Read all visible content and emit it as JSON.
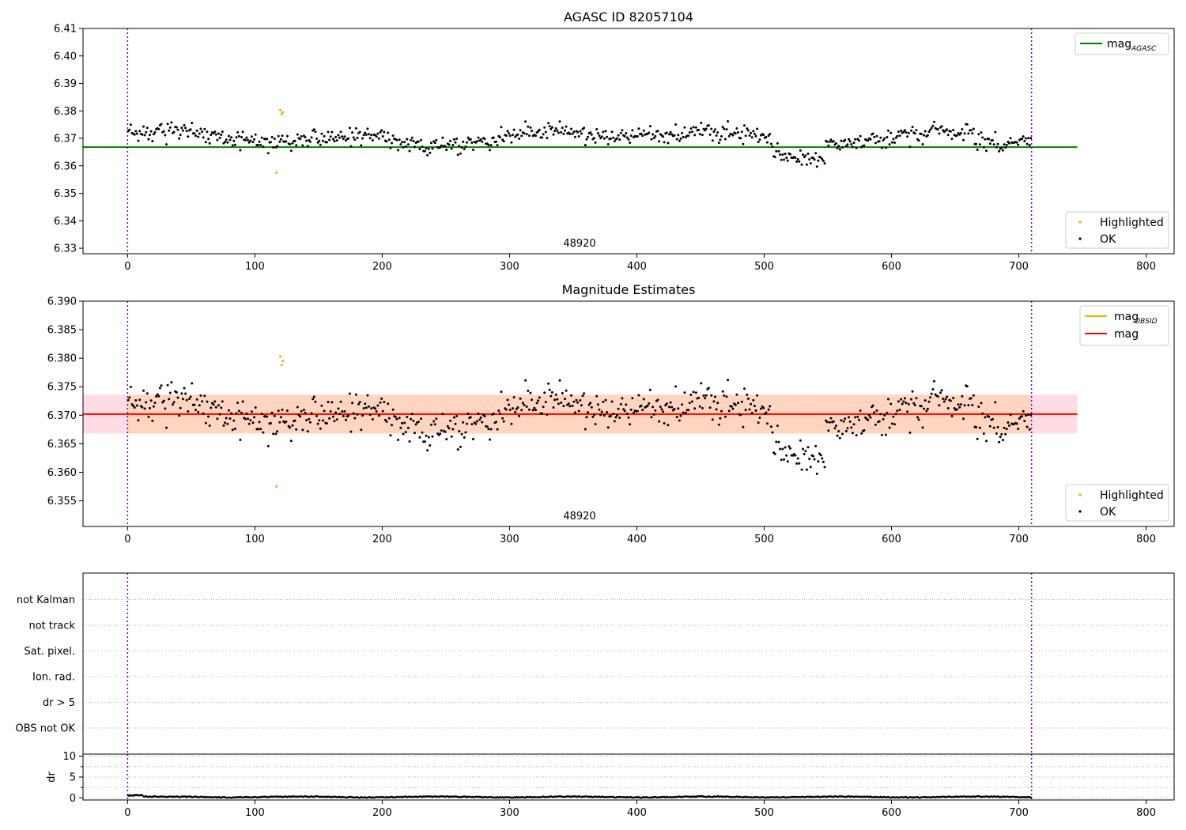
{
  "colors": {
    "ok": "#000000",
    "highlighted": "#ffa500",
    "mag_agasc": "#008000",
    "mag_obsid": "#ffa500",
    "mag": "#ff0000",
    "band_outer": "#ffdce3",
    "band_inner": "#ffd5c2",
    "obs_edge": "#7a0099",
    "grid": "#b0b0b0"
  },
  "chart_data": [
    {
      "type": "scatter",
      "title": "AGASC ID 82057104",
      "xlim": [
        -35,
        822
      ],
      "ylim": [
        6.328,
        6.41
      ],
      "xticks": [
        0,
        100,
        200,
        300,
        400,
        500,
        600,
        700,
        800
      ],
      "yticks": [
        "6.33",
        "6.34",
        "6.35",
        "6.36",
        "6.37",
        "6.38",
        "6.39",
        "6.40",
        "6.41"
      ],
      "reference_lines": [
        {
          "name": "mag",
          "name_sub": "AGASC",
          "value": 6.3668,
          "x_range": [
            -35,
            746
          ]
        }
      ],
      "obsid_boundaries": [
        0,
        710
      ],
      "annotation": {
        "text": "48920",
        "x": 355
      },
      "series": [
        {
          "name": "Highlighted",
          "points": [
            [
              117,
              6.3575
            ],
            [
              120,
              6.3803
            ],
            [
              122,
              6.3795
            ],
            [
              121,
              6.3788
            ]
          ]
        },
        {
          "name": "OK",
          "n_points": 710,
          "x_range": [
            0,
            710
          ]
        }
      ],
      "legends": [
        {
          "position": "upper-right",
          "entries": [
            "mag_AGASC"
          ]
        },
        {
          "position": "lower-right",
          "entries": [
            "Highlighted",
            "OK"
          ]
        }
      ]
    },
    {
      "type": "scatter",
      "title": "Magnitude Estimates",
      "xlim": [
        -35,
        822
      ],
      "ylim": [
        6.3505,
        6.39
      ],
      "xticks": [
        0,
        100,
        200,
        300,
        400,
        500,
        600,
        700,
        800
      ],
      "yticks": [
        "6.355",
        "6.360",
        "6.365",
        "6.370",
        "6.375",
        "6.380",
        "6.385",
        "6.390"
      ],
      "reference_lines": [
        {
          "name": "mag",
          "name_sub": "OBSID",
          "value": 6.3702,
          "x_range": [
            0,
            710
          ],
          "band": [
            6.3668,
            6.3736
          ]
        },
        {
          "name": "mag",
          "value": 6.3702,
          "x_range": [
            -35,
            746
          ],
          "band": [
            6.3668,
            6.3736
          ]
        }
      ],
      "obsid_boundaries": [
        0,
        710
      ],
      "annotation": {
        "text": "48920",
        "x": 355
      },
      "series": [
        {
          "name": "Highlighted",
          "points": [
            [
              117,
              6.3575
            ],
            [
              120,
              6.3803
            ],
            [
              122,
              6.3795
            ],
            [
              121,
              6.3788
            ]
          ]
        },
        {
          "name": "OK",
          "n_points": 710,
          "x_range": [
            0,
            710
          ]
        }
      ],
      "legends": [
        {
          "position": "upper-right",
          "entries": [
            "mag_OBSID",
            "mag"
          ]
        },
        {
          "position": "lower-right",
          "entries": [
            "Highlighted",
            "OK"
          ]
        }
      ]
    },
    {
      "type": "scatter",
      "title": "",
      "xlim": [
        -35,
        822
      ],
      "flags": [
        "not Kalman",
        "not track",
        "Sat. pixel.",
        "Ion. rad.",
        "dr > 5",
        "OBS not OK"
      ],
      "obsid_boundaries": [
        0,
        710
      ],
      "flagged_points": 0
    },
    {
      "type": "scatter",
      "title": "",
      "ylabel": "dr",
      "xlim": [
        -35,
        822
      ],
      "ylim": [
        -0.5,
        10.5
      ],
      "xticks": [
        0,
        100,
        200,
        300,
        400,
        500,
        600,
        700,
        800
      ],
      "yticks": [
        "0",
        "5",
        "10"
      ],
      "obsid_boundaries": [
        0,
        710
      ],
      "series": [
        {
          "name": "dr",
          "n_points": 710,
          "x_range": [
            0,
            710
          ],
          "y_range": [
            0,
            0.6
          ]
        }
      ]
    }
  ]
}
